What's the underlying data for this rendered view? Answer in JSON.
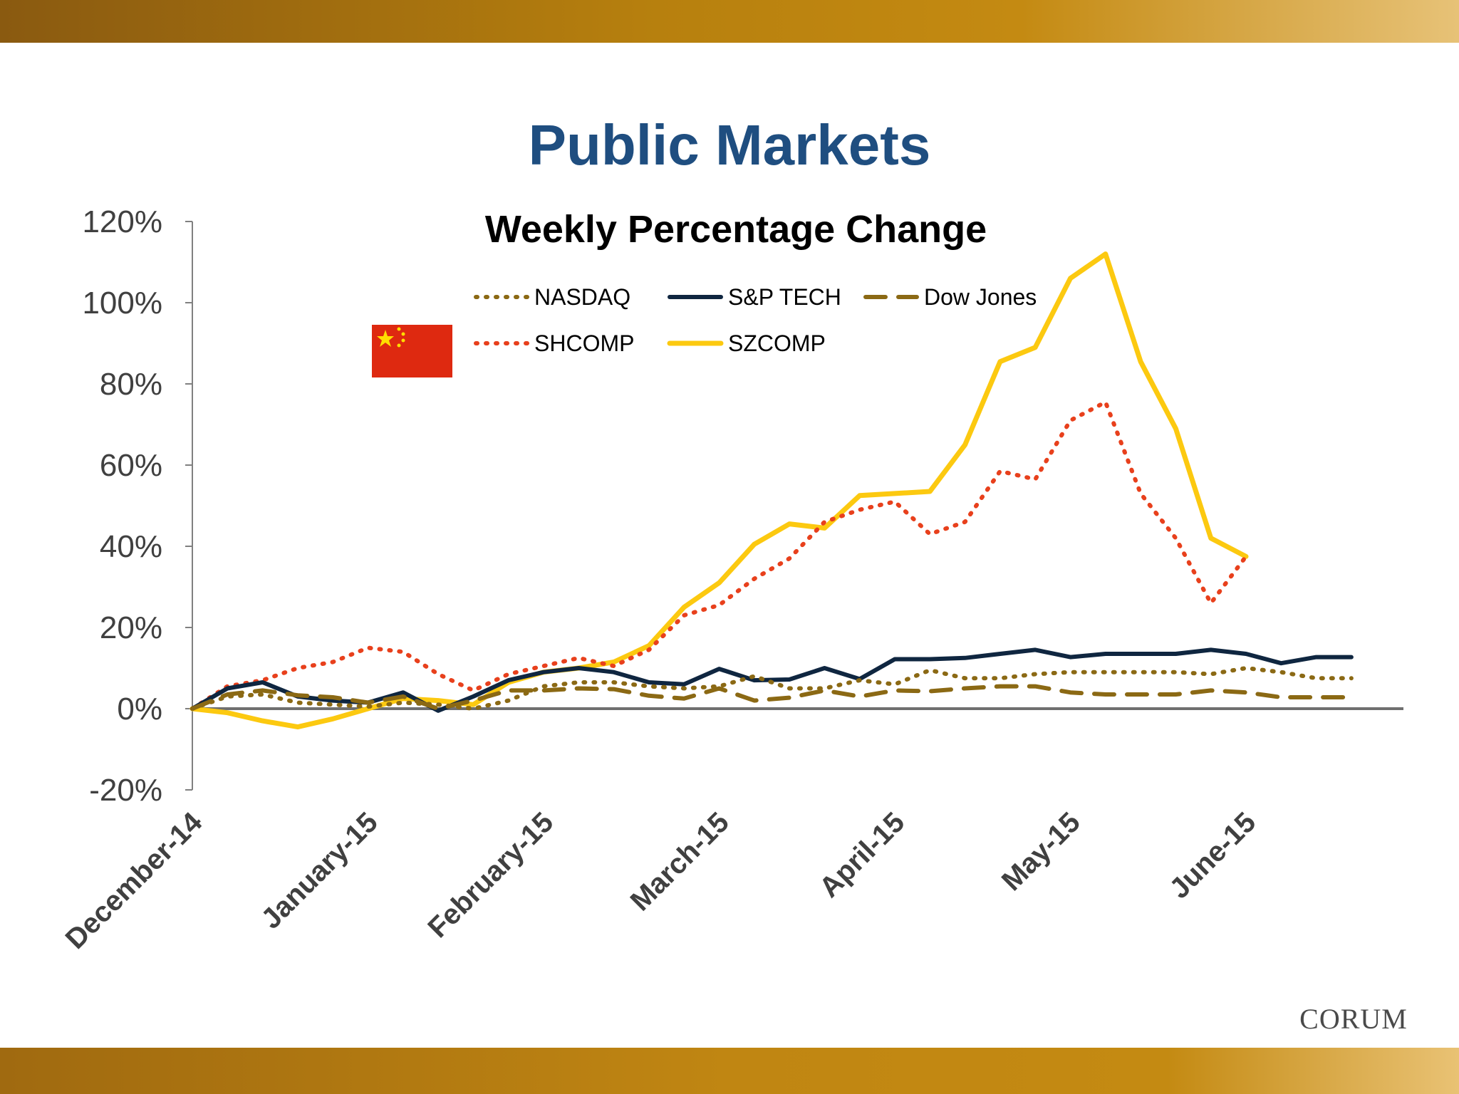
{
  "slide": {
    "title": "Public Markets",
    "brand": "CORUM",
    "colors": {
      "title": "#1f4e80",
      "bar_dark": "#8a5a10",
      "bar_mid": "#c48a12",
      "bar_light": "#e7c277"
    }
  },
  "chart_data": {
    "type": "line",
    "title": "Weekly Percentage Change",
    "xlabel": "",
    "ylabel": "",
    "ylim": [
      -0.2,
      1.2
    ],
    "yticks": [
      "120%",
      "100%",
      "80%",
      "60%",
      "40%",
      "20%",
      "0%",
      "-20%"
    ],
    "ytick_values": [
      1.2,
      1.0,
      0.8,
      0.6,
      0.4,
      0.2,
      0.0,
      -0.2
    ],
    "x_tick_labels": [
      "December-14",
      "January-15",
      "February-15",
      "March-15",
      "April-15",
      "May-15",
      "June-15"
    ],
    "x_tick_weeks": [
      0,
      5,
      10,
      15,
      20,
      25,
      30
    ],
    "x_weeks": [
      0,
      1,
      2,
      3,
      4,
      5,
      6,
      7,
      8,
      9,
      10,
      11,
      12,
      13,
      14,
      15,
      16,
      17,
      18,
      19,
      20,
      21,
      22,
      23,
      24,
      25,
      26,
      27,
      28,
      29,
      30,
      31,
      32,
      33,
      34,
      35
    ],
    "grid": false,
    "legend_position": "top",
    "inset_icon": "china-flag-icon",
    "series": [
      {
        "name": "NASDAQ",
        "color": "#8b6914",
        "dash": "dotted",
        "values": [
          0,
          0.03,
          0.035,
          0.015,
          0.01,
          0.005,
          0.015,
          0.01,
          0.0,
          0.02,
          0.055,
          0.065,
          0.065,
          0.055,
          0.05,
          0.055,
          0.08,
          0.05,
          0.05,
          0.07,
          0.06,
          0.095,
          0.075,
          0.075,
          0.085,
          0.09,
          0.09,
          0.09,
          0.09,
          0.085,
          0.1,
          0.09,
          0.075,
          0.075
        ]
      },
      {
        "name": "S&P TECH",
        "color": "#0f2640",
        "dash": "solid",
        "values": [
          0,
          0.05,
          0.065,
          0.03,
          0.02,
          0.015,
          0.04,
          -0.005,
          0.03,
          0.07,
          0.09,
          0.1,
          0.09,
          0.065,
          0.06,
          0.098,
          0.07,
          0.072,
          0.1,
          0.073,
          0.122,
          0.122,
          0.125,
          0.135,
          0.145,
          0.127,
          0.135,
          0.135,
          0.135,
          0.145,
          0.135,
          0.112,
          0.127,
          0.127
        ]
      },
      {
        "name": "Dow Jones",
        "color": "#8b6914",
        "dash": "dashed",
        "values": [
          0,
          0.035,
          0.045,
          0.033,
          0.028,
          0.015,
          0.03,
          0.0,
          0.02,
          0.045,
          0.045,
          0.05,
          0.048,
          0.032,
          0.025,
          0.05,
          0.02,
          0.027,
          0.045,
          0.03,
          0.045,
          0.043,
          0.05,
          0.055,
          0.055,
          0.04,
          0.035,
          0.035,
          0.035,
          0.045,
          0.04,
          0.028,
          0.028,
          0.028
        ]
      },
      {
        "name": "SHCOMP",
        "color": "#e8401c",
        "dash": "dotted",
        "values": [
          0,
          0.055,
          0.07,
          0.1,
          0.115,
          0.15,
          0.14,
          0.085,
          0.045,
          0.085,
          0.105,
          0.125,
          0.105,
          0.145,
          0.23,
          0.255,
          0.32,
          0.37,
          0.46,
          0.49,
          0.51,
          0.43,
          0.46,
          0.585,
          0.565,
          0.71,
          0.755,
          0.53,
          0.42,
          0.26,
          0.375
        ]
      },
      {
        "name": "SZCOMP",
        "color": "#fcc910",
        "dash": "solid",
        "values": [
          0,
          -0.01,
          -0.03,
          -0.045,
          -0.025,
          0.0,
          0.025,
          0.02,
          0.01,
          0.065,
          0.09,
          0.1,
          0.115,
          0.155,
          0.25,
          0.31,
          0.405,
          0.455,
          0.445,
          0.525,
          0.53,
          0.535,
          0.65,
          0.855,
          0.89,
          1.06,
          1.12,
          0.855,
          0.69,
          0.42,
          0.375
        ]
      }
    ]
  }
}
